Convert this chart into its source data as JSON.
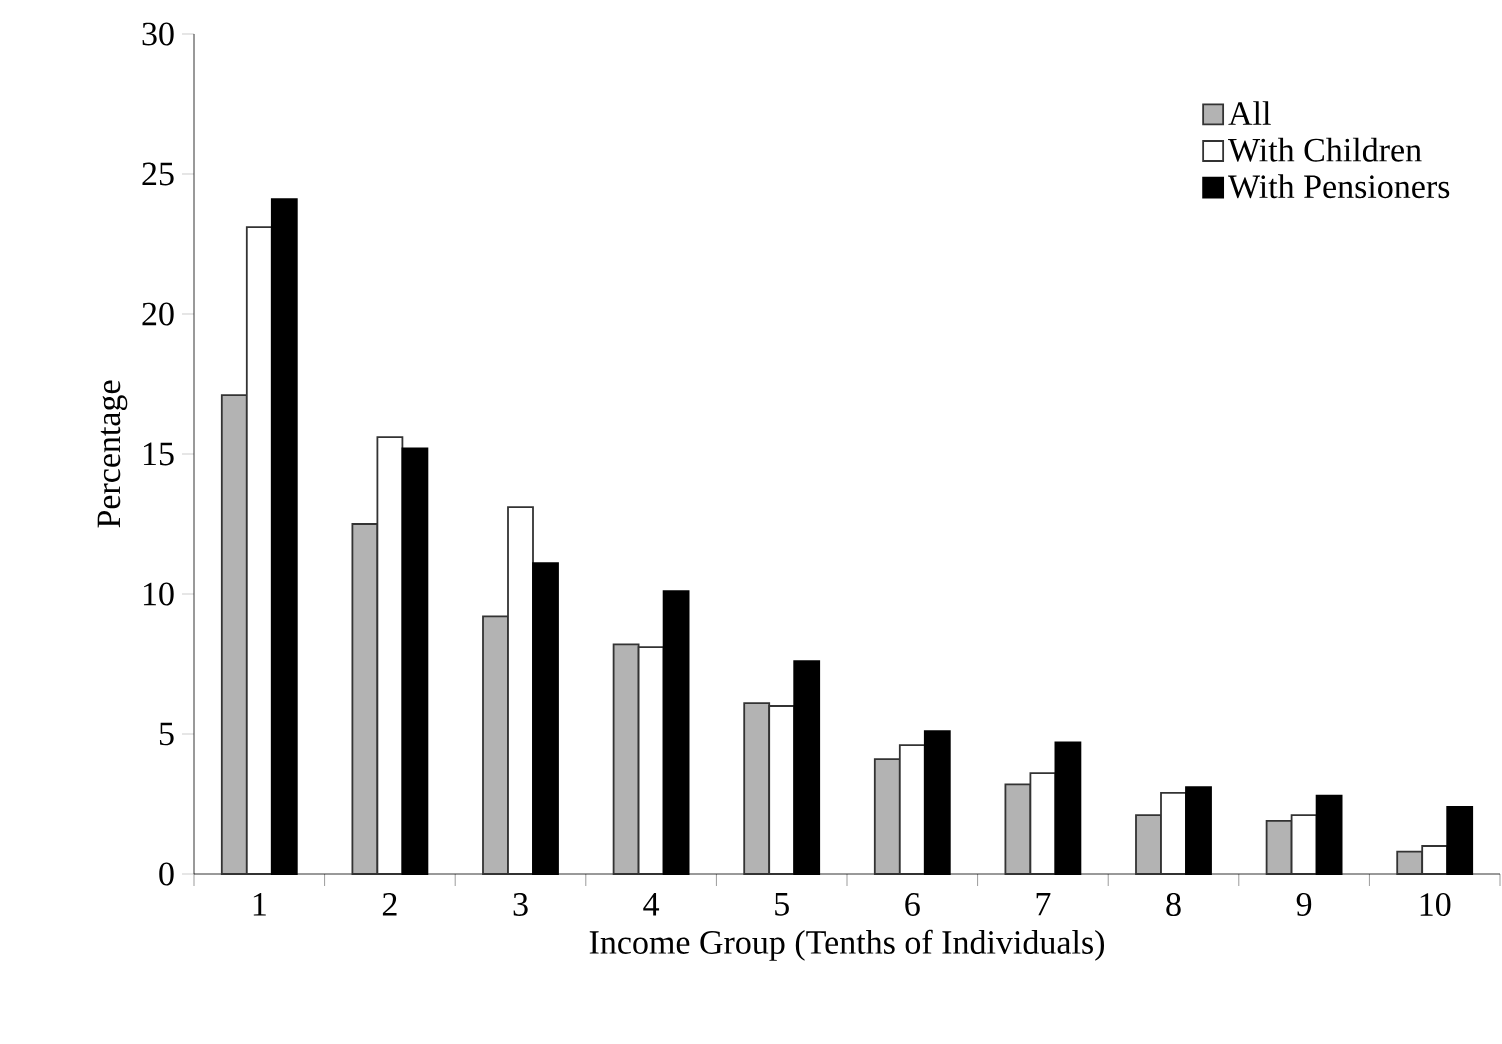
{
  "chart_data": {
    "type": "bar",
    "xlabel": "Income Group (Tenths of Individuals)",
    "ylabel": "Percentage",
    "categories": [
      "1",
      "2",
      "3",
      "4",
      "5",
      "6",
      "7",
      "8",
      "9",
      "10"
    ],
    "ylim": [
      0,
      30
    ],
    "yticks": [
      0,
      5,
      10,
      15,
      20,
      25,
      30
    ],
    "legend": "top right",
    "series": [
      {
        "name": "All",
        "color": "#b3b3b3",
        "values": [
          17.1,
          12.5,
          9.2,
          8.2,
          6.1,
          4.1,
          3.2,
          2.1,
          1.9,
          0.8
        ]
      },
      {
        "name": "With Children",
        "color": "#ffffff",
        "values": [
          23.1,
          15.6,
          13.1,
          8.1,
          6.0,
          4.6,
          3.6,
          2.9,
          2.1,
          1.0
        ]
      },
      {
        "name": "With Pensioners",
        "color": "#000000",
        "values": [
          24.1,
          15.2,
          11.1,
          10.1,
          7.6,
          5.1,
          4.7,
          3.1,
          2.8,
          2.4
        ]
      }
    ]
  }
}
